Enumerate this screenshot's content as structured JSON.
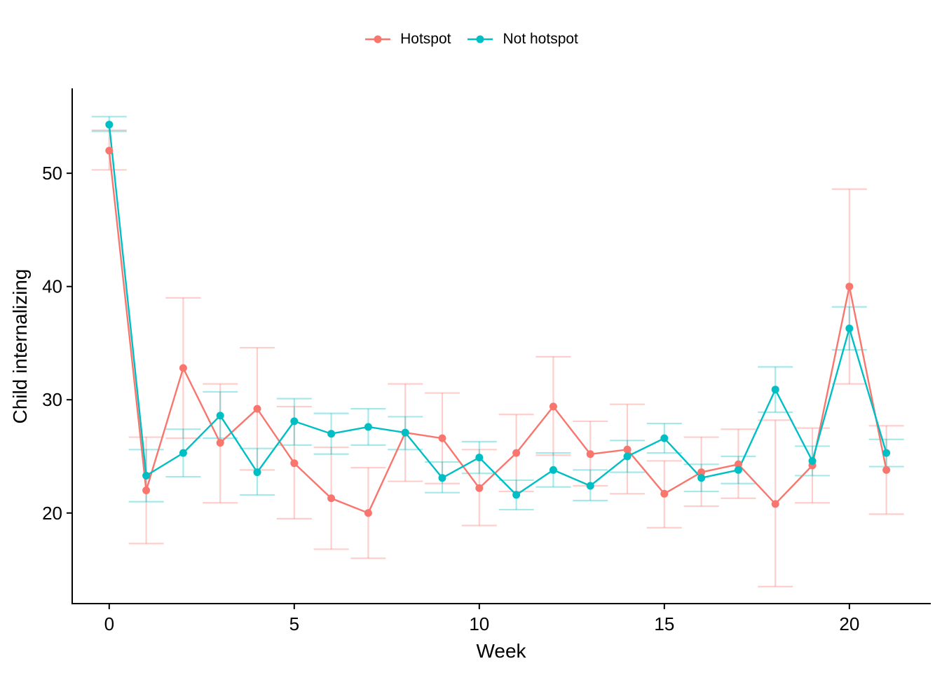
{
  "chart_data": {
    "type": "line",
    "xlabel": "Week",
    "ylabel": "Child internalizing",
    "xlim": [
      -1.0,
      22.2
    ],
    "ylim": [
      12.0,
      57.5
    ],
    "xticks": [
      0,
      5,
      10,
      15,
      20
    ],
    "yticks": [
      20,
      30,
      40,
      50
    ],
    "x": [
      0,
      1,
      2,
      3,
      4,
      5,
      6,
      7,
      8,
      9,
      10,
      11,
      12,
      13,
      14,
      15,
      16,
      17,
      18,
      19,
      20,
      21
    ],
    "legend_position": "top",
    "grid": false,
    "series": [
      {
        "name": "Hotspot",
        "color": "#F8766D",
        "values": [
          52.0,
          22.0,
          32.8,
          26.2,
          29.2,
          24.4,
          21.3,
          20.0,
          27.1,
          26.6,
          22.2,
          25.3,
          29.4,
          25.2,
          25.6,
          21.7,
          23.6,
          24.3,
          20.8,
          24.2,
          40.0,
          23.8
        ],
        "err_low": [
          50.3,
          17.3,
          26.6,
          20.9,
          23.8,
          19.5,
          16.8,
          16.0,
          22.8,
          22.6,
          18.9,
          21.9,
          25.1,
          22.4,
          21.7,
          18.7,
          20.6,
          21.3,
          13.5,
          20.9,
          31.4,
          19.9
        ],
        "err_high": [
          53.8,
          26.7,
          39.0,
          31.4,
          34.6,
          29.4,
          25.8,
          24.0,
          31.4,
          30.6,
          25.6,
          28.7,
          33.8,
          28.1,
          29.6,
          24.6,
          26.7,
          27.4,
          28.2,
          27.5,
          48.6,
          27.7
        ]
      },
      {
        "name": "Not hotspot",
        "color": "#00BFC4",
        "values": [
          54.3,
          23.3,
          25.3,
          28.6,
          23.6,
          28.1,
          27.0,
          27.6,
          27.1,
          23.1,
          24.9,
          21.6,
          23.8,
          22.4,
          25.0,
          26.6,
          23.1,
          23.8,
          30.9,
          24.6,
          36.3,
          25.3
        ],
        "err_low": [
          53.7,
          21.0,
          23.2,
          26.6,
          21.6,
          26.0,
          25.2,
          26.0,
          25.6,
          21.8,
          23.5,
          20.3,
          22.3,
          21.1,
          23.6,
          25.3,
          21.9,
          22.6,
          28.9,
          23.3,
          34.4,
          24.1
        ],
        "err_high": [
          55.0,
          25.6,
          27.4,
          30.7,
          25.7,
          30.1,
          28.8,
          29.2,
          28.5,
          24.5,
          26.3,
          22.9,
          25.3,
          23.8,
          26.4,
          27.9,
          24.3,
          25.0,
          32.9,
          25.9,
          38.2,
          26.5
        ]
      }
    ]
  }
}
